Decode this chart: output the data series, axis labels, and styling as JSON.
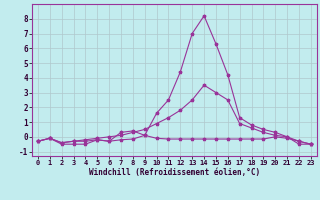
{
  "title": "",
  "xlabel": "Windchill (Refroidissement éolien,°C)",
  "xlim": [
    -0.5,
    23.5
  ],
  "ylim": [
    -1.3,
    9.0
  ],
  "yticks": [
    -1,
    0,
    1,
    2,
    3,
    4,
    5,
    6,
    7,
    8
  ],
  "xticks": [
    0,
    1,
    2,
    3,
    4,
    5,
    6,
    7,
    8,
    9,
    10,
    11,
    12,
    13,
    14,
    15,
    16,
    17,
    18,
    19,
    20,
    21,
    22,
    23
  ],
  "bg_color": "#c2ecee",
  "line_color": "#993399",
  "grid_color": "#b0c8cc",
  "line1_x": [
    0,
    1,
    2,
    3,
    4,
    5,
    6,
    7,
    8,
    9,
    10,
    11,
    12,
    13,
    14,
    15,
    16,
    17,
    18,
    19,
    20,
    21,
    22,
    23
  ],
  "line1_y": [
    -0.3,
    -0.1,
    -0.4,
    -0.3,
    -0.3,
    -0.2,
    -0.3,
    0.3,
    0.4,
    0.1,
    -0.1,
    -0.15,
    -0.15,
    -0.15,
    -0.15,
    -0.15,
    -0.15,
    -0.15,
    -0.15,
    -0.15,
    0.0,
    -0.1,
    -0.3,
    -0.5
  ],
  "line2_x": [
    0,
    1,
    2,
    3,
    4,
    5,
    6,
    7,
    8,
    9,
    10,
    11,
    12,
    13,
    14,
    15,
    16,
    17,
    18,
    19,
    20,
    21,
    22,
    23
  ],
  "line2_y": [
    -0.3,
    -0.1,
    -0.5,
    -0.5,
    -0.5,
    -0.2,
    -0.3,
    -0.2,
    -0.15,
    0.1,
    1.6,
    2.5,
    4.4,
    7.0,
    8.2,
    6.3,
    4.2,
    1.3,
    0.8,
    0.5,
    0.3,
    -0.0,
    -0.5,
    -0.5
  ],
  "line3_x": [
    0,
    1,
    2,
    3,
    4,
    5,
    6,
    7,
    8,
    9,
    10,
    11,
    12,
    13,
    14,
    15,
    16,
    17,
    18,
    19,
    20,
    21,
    22,
    23
  ],
  "line3_y": [
    -0.3,
    -0.1,
    -0.4,
    -0.3,
    -0.2,
    -0.1,
    -0.0,
    0.1,
    0.3,
    0.5,
    0.9,
    1.3,
    1.8,
    2.5,
    3.5,
    3.0,
    2.5,
    0.9,
    0.6,
    0.3,
    0.1,
    -0.0,
    -0.3,
    -0.5
  ],
  "figsize": [
    3.2,
    2.0
  ],
  "dpi": 100,
  "marker_size": 2.5,
  "line_width": 0.8,
  "tick_fontsize": 5.0,
  "xlabel_fontsize": 5.5
}
